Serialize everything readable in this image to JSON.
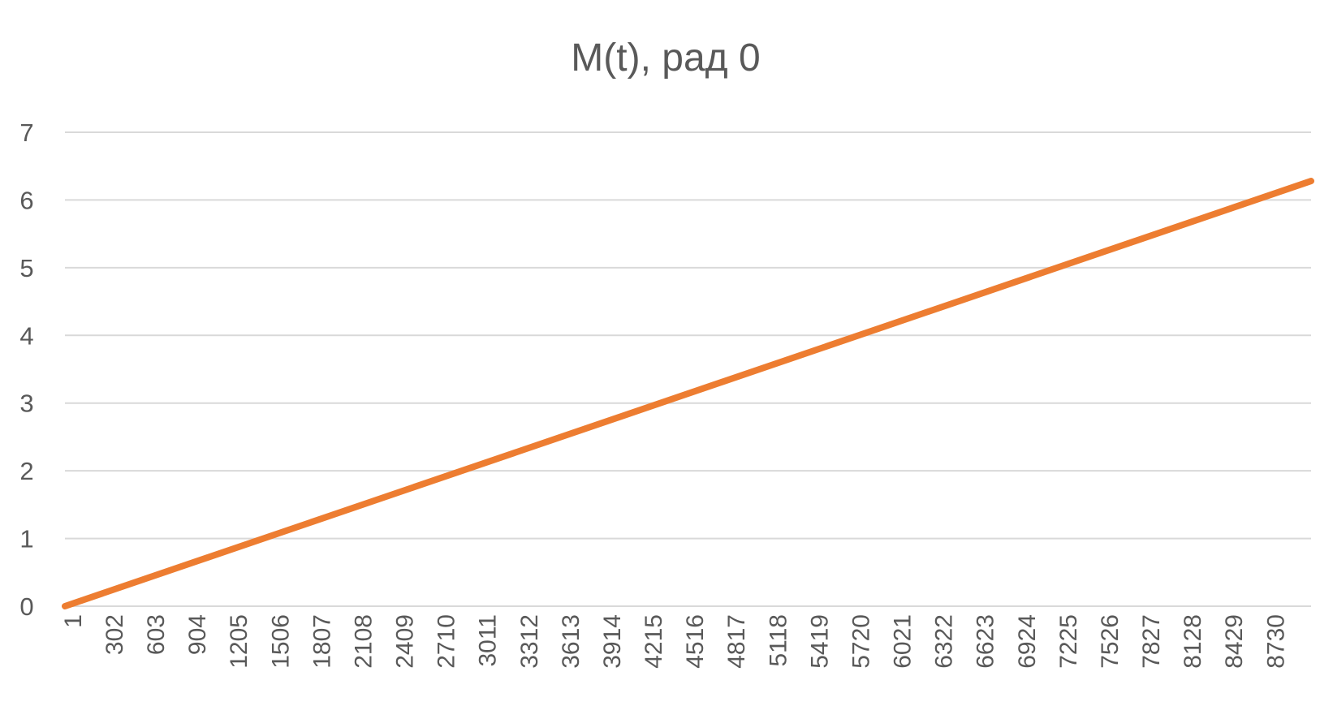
{
  "chart_data": {
    "type": "line",
    "title": "M(t), рад 0",
    "xlabel": "",
    "ylabel": "",
    "ylim": [
      0,
      7
    ],
    "y_ticks": [
      "0",
      "1",
      "2",
      "3",
      "4",
      "5",
      "6",
      "7"
    ],
    "x_categories": [
      "1",
      "302",
      "603",
      "904",
      "1205",
      "1506",
      "1807",
      "2108",
      "2409",
      "2710",
      "3011",
      "3312",
      "3613",
      "3914",
      "4215",
      "4516",
      "4817",
      "5118",
      "5419",
      "5720",
      "6021",
      "6322",
      "6623",
      "6924",
      "7225",
      "7526",
      "7827",
      "8128",
      "8429",
      "8730"
    ],
    "x_range": [
      1,
      9000
    ],
    "grid": true,
    "legend": "none",
    "series": [
      {
        "color": "#ED7D31",
        "x": [
          1,
          9000
        ],
        "values": [
          0,
          6.28
        ]
      }
    ]
  }
}
